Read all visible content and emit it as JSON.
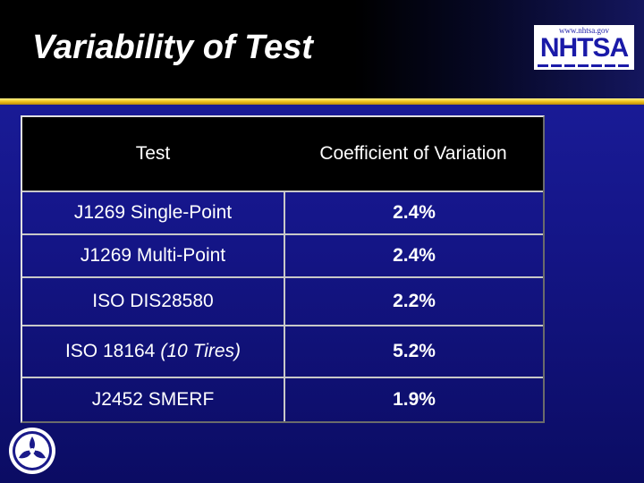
{
  "slide": {
    "title": "Variability of Test"
  },
  "logo": {
    "url_text": "www.nhtsa.gov",
    "name": "NHTSA"
  },
  "table": {
    "headers": [
      "Test",
      "Coefficient of Variation"
    ],
    "rows": [
      {
        "test": "J1269 Single-Point",
        "test_note": "",
        "cov": "2.4%"
      },
      {
        "test": "J1269 Multi-Point",
        "test_note": "",
        "cov": "2.4%"
      },
      {
        "test": "ISO DIS28580",
        "test_note": "",
        "cov": "2.2%"
      },
      {
        "test": "ISO 18164",
        "test_note": "(10 Tires)",
        "cov": "5.2%"
      },
      {
        "test": "J2452 SMERF",
        "test_note": "",
        "cov": "1.9%"
      }
    ]
  },
  "colors": {
    "background": "#15168a",
    "accent_bar": "#f2c21a",
    "header_row": "#000000"
  },
  "icons": {
    "seal": "dot-seal-icon"
  }
}
